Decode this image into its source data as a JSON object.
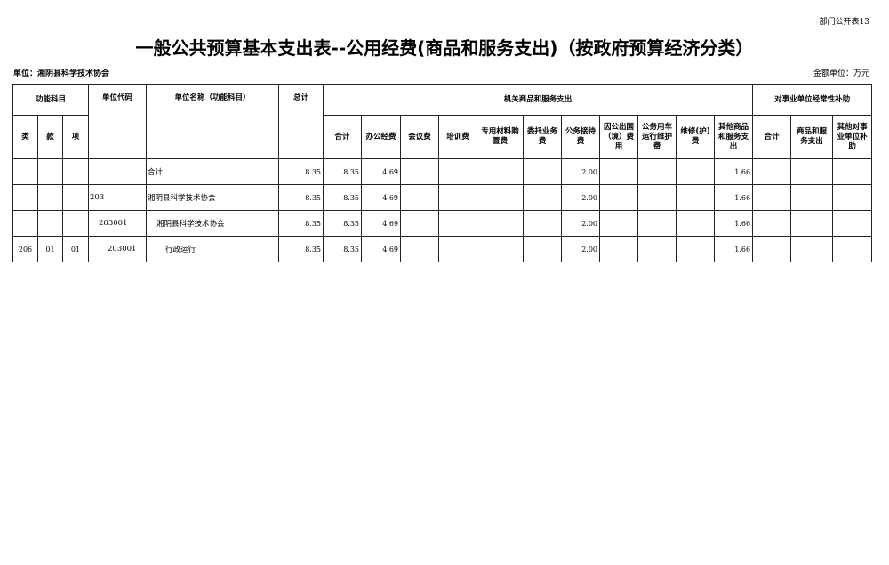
{
  "corner_label": "部门公开表13",
  "title": "一般公共预算基本支出表--公用经费(商品和服务支出)（按政府预算经济分类）",
  "unit_label": "单位：湘阴县科学技术协会",
  "money_unit": "金额单位：万元",
  "headers": {
    "func_subject": "功能科目",
    "lei": "类",
    "kuan": "款",
    "xiang": "项",
    "unit_code": "单位代码",
    "unit_name": "单位名称（功能科目）",
    "total": "总计",
    "group1": "机关商品和服务支出",
    "group2": "对事业单位经常性补助",
    "g1_cols": [
      "合计",
      "办公经费",
      "会议费",
      "培训费",
      "专用材料购置费",
      "委托业务费",
      "公务接待费",
      "因公出国（境）费用",
      "公务用车运行维护费",
      "维修(护)费",
      "其他商品和服务支出"
    ],
    "g2_cols": [
      "合计",
      "商品和服务支出",
      "其他对事业单位补助"
    ]
  },
  "rows": [
    {
      "lei": "",
      "kuan": "",
      "xiang": "",
      "code": "",
      "name": "合计",
      "total": "8.35",
      "g1_total": "8.35",
      "office": "4.69",
      "reception": "2.00",
      "other": "1.66"
    },
    {
      "lei": "",
      "kuan": "",
      "xiang": "",
      "code": "203",
      "name": "湘阴县科学技术协会",
      "total": "8.35",
      "g1_total": "8.35",
      "office": "4.69",
      "reception": "2.00",
      "other": "1.66"
    },
    {
      "lei": "",
      "kuan": "",
      "xiang": "",
      "code": "203001",
      "name": "湘阴县科学技术协会",
      "total": "8.35",
      "g1_total": "8.35",
      "office": "4.69",
      "reception": "2.00",
      "other": "1.66"
    },
    {
      "lei": "206",
      "kuan": "01",
      "xiang": "01",
      "code": "203001",
      "name": "行政运行",
      "total": "8.35",
      "g1_total": "8.35",
      "office": "4.69",
      "reception": "2.00",
      "other": "1.66"
    }
  ]
}
